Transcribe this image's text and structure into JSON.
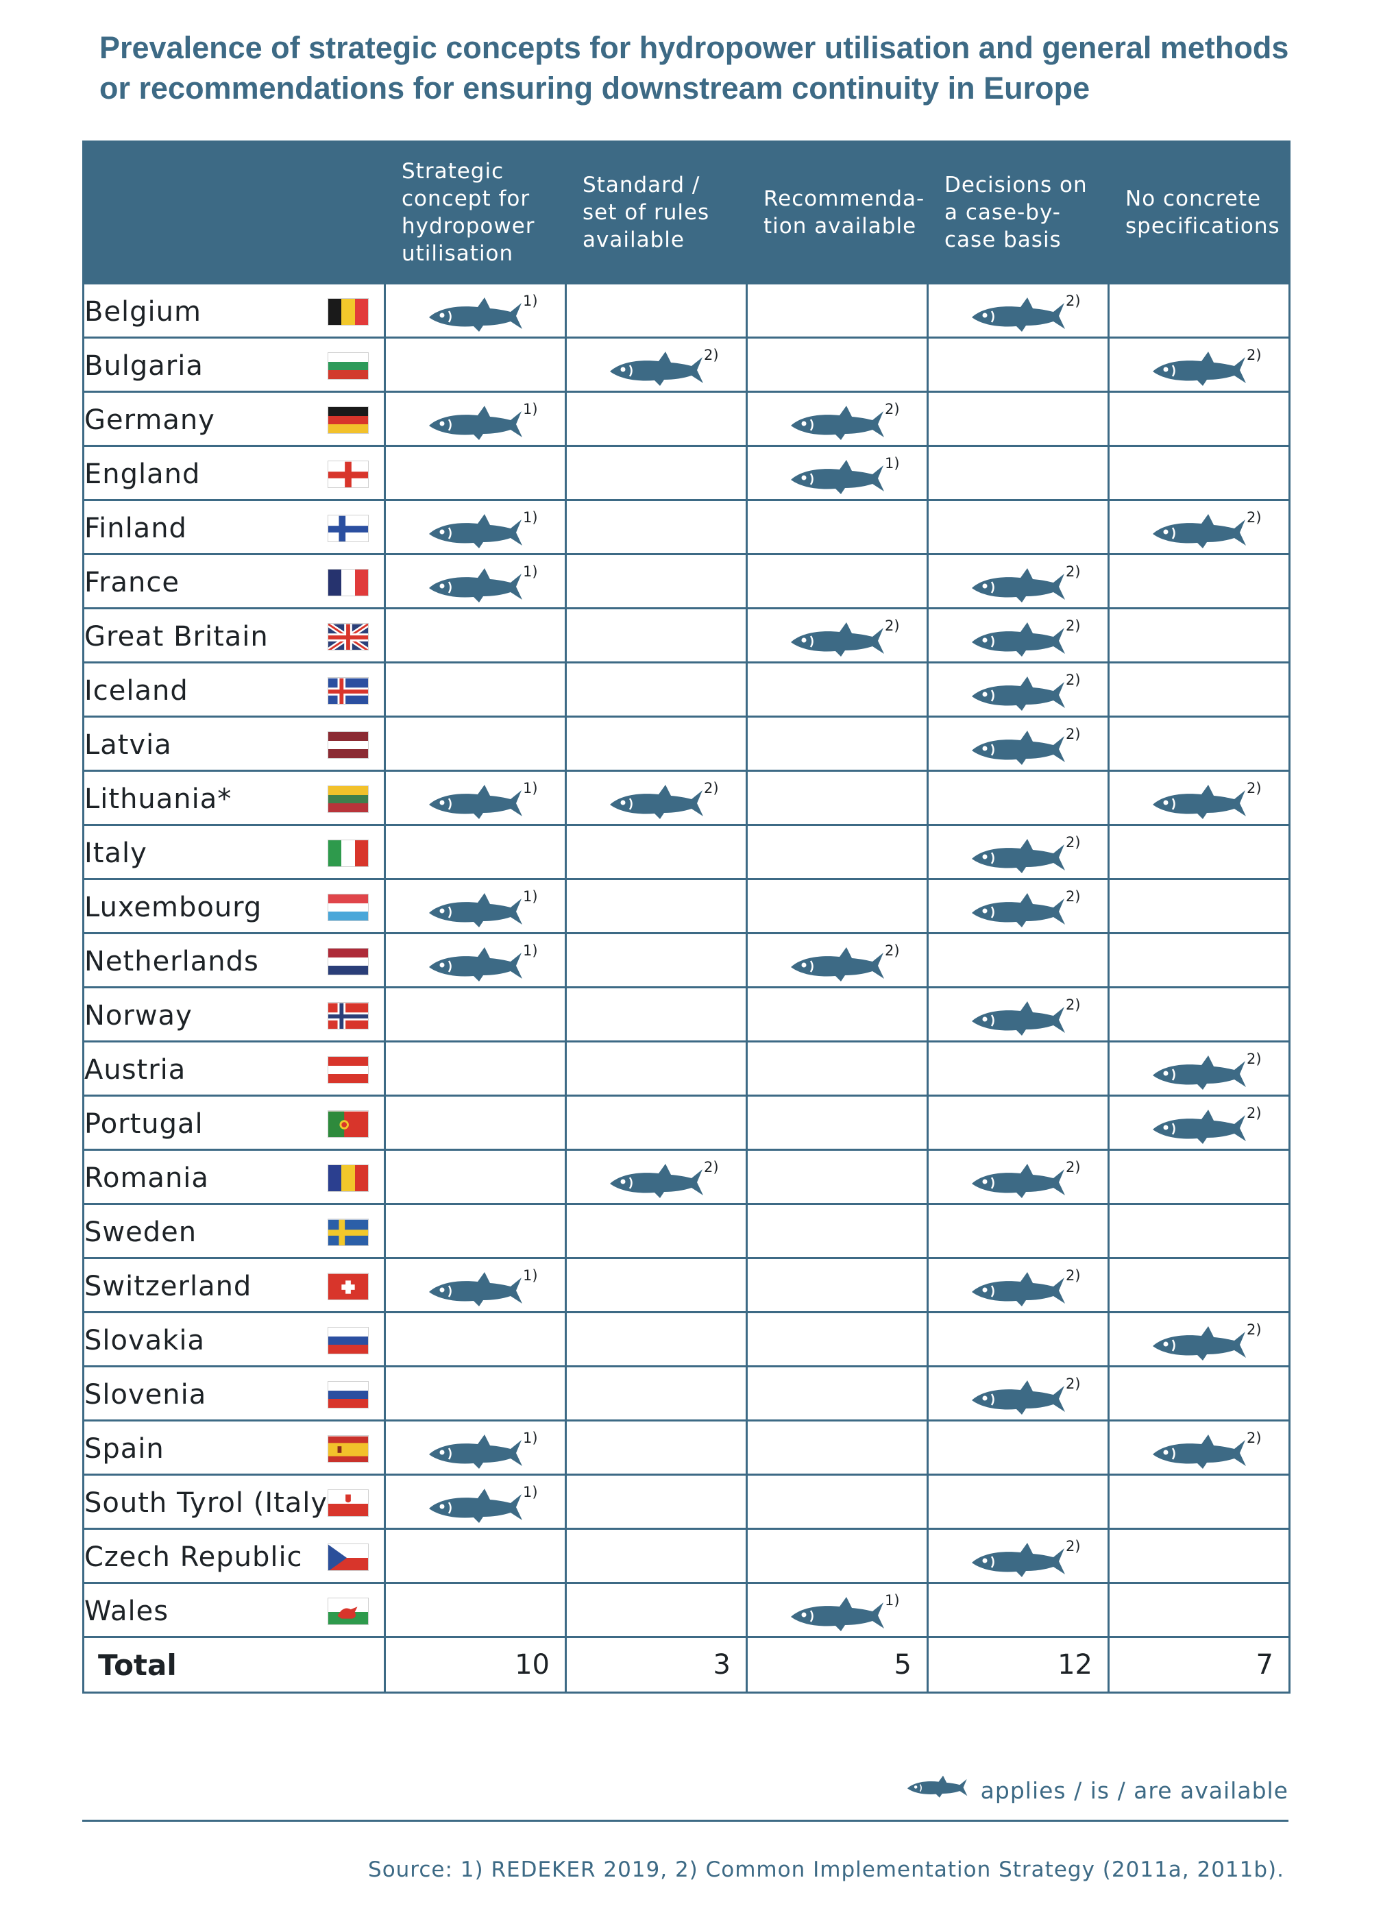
{
  "title": "Prevalence of strategic concepts for hydropower utilisation and general methods or recommendations for ensuring downstream continuity in Europe",
  "columns": [
    "Strategic concept for hydropower utilisation",
    "Standard / set of rules available",
    "Recommenda-tion available",
    "Decisions on a case-by-case basis",
    "No concrete specifications"
  ],
  "columns_display": [
    [
      "Strategic",
      "concept for",
      "hydropower",
      "utilisation"
    ],
    [
      "Standard /",
      "set of rules",
      "available"
    ],
    [
      "Recommenda-",
      "tion available"
    ],
    [
      "Decisions on",
      "a case-by-",
      "case basis"
    ],
    [
      "No concrete",
      "specifications"
    ]
  ],
  "icon": "fish-icon",
  "accent_color": "#3d6a85",
  "rows": [
    {
      "country": "Belgium",
      "flag": "flag-belgium",
      "cells": [
        "1)",
        "",
        "",
        "2)",
        ""
      ]
    },
    {
      "country": "Bulgaria",
      "flag": "flag-bulgaria",
      "cells": [
        "",
        "2)",
        "",
        "",
        "2)"
      ]
    },
    {
      "country": "Germany",
      "flag": "flag-germany",
      "cells": [
        "1)",
        "",
        "2)",
        "",
        ""
      ]
    },
    {
      "country": "England",
      "flag": "flag-england",
      "cells": [
        "",
        "",
        "1)",
        "",
        ""
      ]
    },
    {
      "country": "Finland",
      "flag": "flag-finland",
      "cells": [
        "1)",
        "",
        "",
        "",
        "2)"
      ]
    },
    {
      "country": "France",
      "flag": "flag-france",
      "cells": [
        "1)",
        "",
        "",
        "2)",
        ""
      ]
    },
    {
      "country": "Great Britain",
      "flag": "flag-great-britain",
      "cells": [
        "",
        "",
        "2)",
        "2)",
        ""
      ]
    },
    {
      "country": "Iceland",
      "flag": "flag-iceland",
      "cells": [
        "",
        "",
        "",
        "2)",
        ""
      ]
    },
    {
      "country": "Latvia",
      "flag": "flag-latvia",
      "cells": [
        "",
        "",
        "",
        "2)",
        ""
      ]
    },
    {
      "country": "Lithuania*",
      "flag": "flag-lithuania",
      "cells": [
        "1)",
        "2)",
        "",
        "",
        "2)"
      ]
    },
    {
      "country": "Italy",
      "flag": "flag-italy",
      "cells": [
        "",
        "",
        "",
        "2)",
        ""
      ]
    },
    {
      "country": "Luxembourg",
      "flag": "flag-luxembourg",
      "cells": [
        "1)",
        "",
        "",
        "2)",
        ""
      ]
    },
    {
      "country": "Netherlands",
      "flag": "flag-netherlands",
      "cells": [
        "1)",
        "",
        "2)",
        "",
        ""
      ]
    },
    {
      "country": "Norway",
      "flag": "flag-norway",
      "cells": [
        "",
        "",
        "",
        "2)",
        ""
      ]
    },
    {
      "country": "Austria",
      "flag": "flag-austria",
      "cells": [
        "",
        "",
        "",
        "",
        "2)"
      ]
    },
    {
      "country": "Portugal",
      "flag": "flag-portugal",
      "cells": [
        "",
        "",
        "",
        "",
        "2)"
      ]
    },
    {
      "country": "Romania",
      "flag": "flag-romania",
      "cells": [
        "",
        "2)",
        "",
        "2)",
        ""
      ]
    },
    {
      "country": "Sweden",
      "flag": "flag-sweden",
      "cells": [
        "",
        "",
        "",
        "",
        ""
      ]
    },
    {
      "country": "Switzerland",
      "flag": "flag-switzerland",
      "cells": [
        "1)",
        "",
        "",
        "2)",
        ""
      ]
    },
    {
      "country": "Slovakia",
      "flag": "flag-slovakia",
      "cells": [
        "",
        "",
        "",
        "",
        "2)"
      ]
    },
    {
      "country": "Slovenia",
      "flag": "flag-slovenia",
      "cells": [
        "",
        "",
        "",
        "2)",
        ""
      ]
    },
    {
      "country": "Spain",
      "flag": "flag-spain",
      "cells": [
        "1)",
        "",
        "",
        "",
        "2)"
      ]
    },
    {
      "country": "South Tyrol (Italy)",
      "flag": "flag-south-tyrol",
      "cells": [
        "1)",
        "",
        "",
        "",
        ""
      ]
    },
    {
      "country": "Czech Republic",
      "flag": "flag-czech-republic",
      "cells": [
        "",
        "",
        "",
        "2)",
        ""
      ]
    },
    {
      "country": "Wales",
      "flag": "flag-wales",
      "cells": [
        "",
        "",
        "1)",
        "",
        ""
      ]
    }
  ],
  "total": {
    "label": "Total",
    "values": [
      "10",
      "3",
      "5",
      "12",
      "7"
    ]
  },
  "legend": {
    "icon": "fish-icon",
    "text": "applies /  is  / are available"
  },
  "source": "Source: 1) REDEKER 2019, 2) Common Implementation Strategy (2011a, 2011b)."
}
